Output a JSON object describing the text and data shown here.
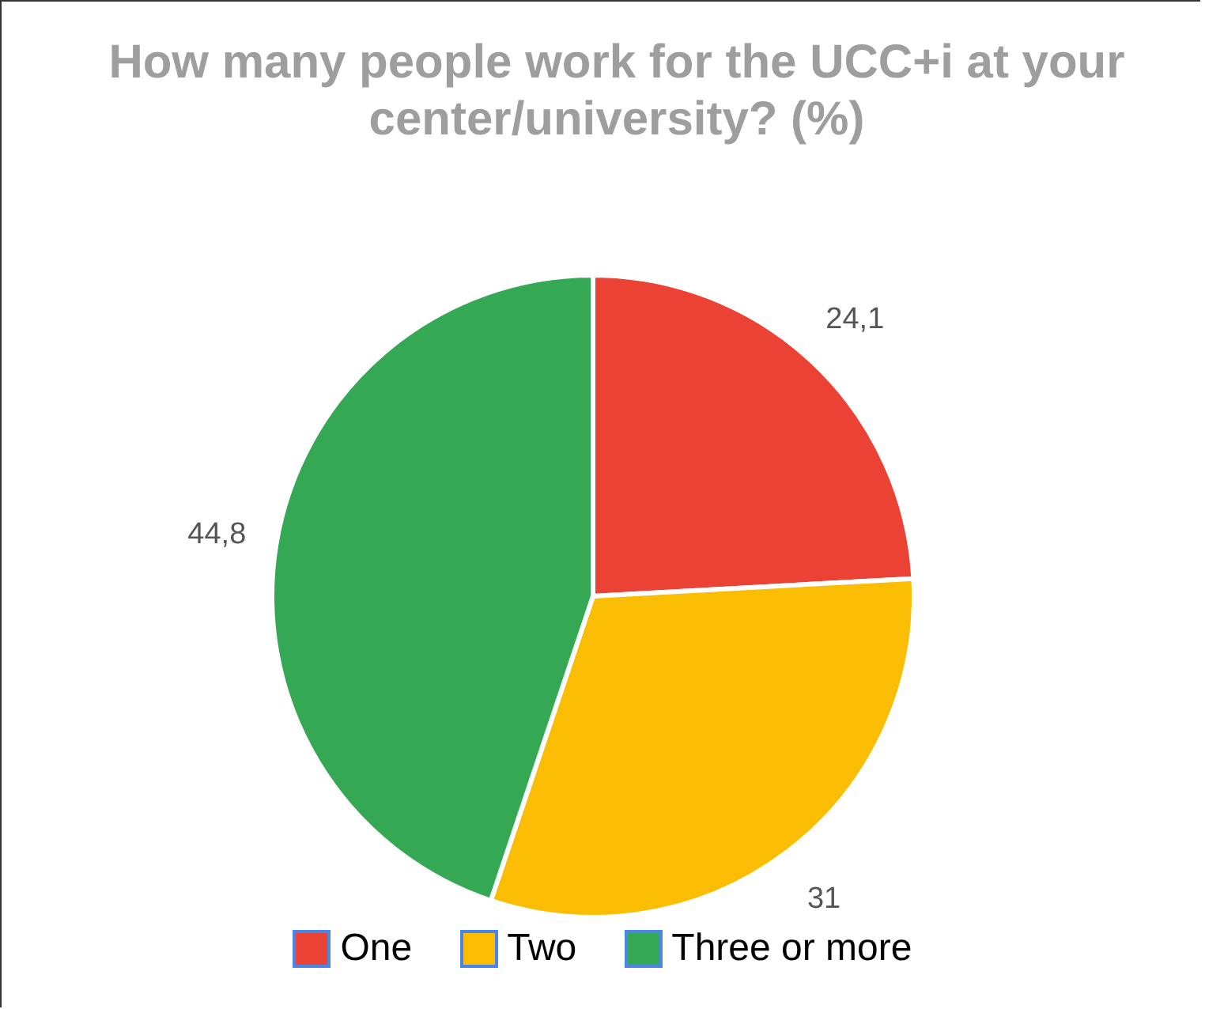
{
  "chart_data": {
    "type": "pie",
    "title": "How many people work for the UCC+i at your center/university? (%)",
    "categories": [
      "One",
      "Two",
      "Three or more"
    ],
    "values": [
      24.1,
      31,
      44.8
    ],
    "value_labels": [
      "24,1",
      "31",
      "44,8"
    ],
    "colors": [
      "#ea4335",
      "#fbbc04",
      "#34a853"
    ],
    "legend": "bottom"
  }
}
